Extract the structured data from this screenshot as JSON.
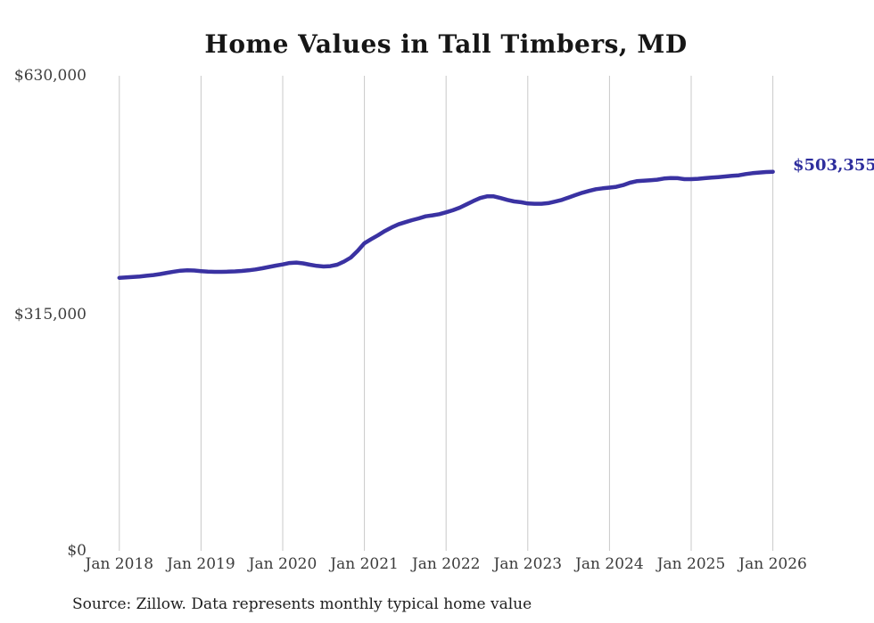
{
  "title": "Home Values in Tall Timbers, MD",
  "source_note": "Source: Zillow. Data represents monthly typical home value",
  "colors": {
    "line": "#3a32a2",
    "end_label": "#2e2e9d",
    "gridline": "#c9c9c9",
    "axis_text": "#3b3b3b",
    "title_text": "#161616"
  },
  "chart_data": {
    "type": "line",
    "title": "Home Values in Tall Timbers, MD",
    "xlabel": "",
    "ylabel": "",
    "ylim": [
      0,
      630000
    ],
    "grid": "vertical-only",
    "legend": "none",
    "y_tick_labels": [
      "$630,000",
      "$315,000",
      "$0"
    ],
    "x_tick_labels": [
      "Jan 2018",
      "Jan 2019",
      "Jan 2020",
      "Jan 2021",
      "Jan 2022",
      "Jan 2023",
      "Jan 2024",
      "Jan 2025",
      "Jan 2026"
    ],
    "last_value": 503355,
    "last_value_label": "$503,355",
    "x": [
      "2018-01",
      "2018-02",
      "2018-03",
      "2018-04",
      "2018-05",
      "2018-06",
      "2018-07",
      "2018-08",
      "2018-09",
      "2018-10",
      "2018-11",
      "2018-12",
      "2019-01",
      "2019-02",
      "2019-03",
      "2019-04",
      "2019-05",
      "2019-06",
      "2019-07",
      "2019-08",
      "2019-09",
      "2019-10",
      "2019-11",
      "2019-12",
      "2020-01",
      "2020-02",
      "2020-03",
      "2020-04",
      "2020-05",
      "2020-06",
      "2020-07",
      "2020-08",
      "2020-09",
      "2020-10",
      "2020-11",
      "2020-12",
      "2021-01",
      "2021-02",
      "2021-03",
      "2021-04",
      "2021-05",
      "2021-06",
      "2021-07",
      "2021-08",
      "2021-09",
      "2021-10",
      "2021-11",
      "2021-12",
      "2022-01",
      "2022-02",
      "2022-03",
      "2022-04",
      "2022-05",
      "2022-06",
      "2022-07",
      "2022-08",
      "2022-09",
      "2022-10",
      "2022-11",
      "2022-12",
      "2023-01",
      "2023-02",
      "2023-03",
      "2023-04",
      "2023-05",
      "2023-06",
      "2023-07",
      "2023-08",
      "2023-09",
      "2023-10",
      "2023-11",
      "2023-12",
      "2024-01",
      "2024-02",
      "2024-03",
      "2024-04",
      "2024-05",
      "2024-06",
      "2024-07",
      "2024-08",
      "2024-09",
      "2024-10",
      "2024-11",
      "2024-12",
      "2025-01",
      "2025-02",
      "2025-03",
      "2025-04",
      "2025-05",
      "2025-06",
      "2025-07",
      "2025-08",
      "2025-09",
      "2025-10",
      "2025-11",
      "2025-12",
      "2026-01"
    ],
    "values": [
      363500,
      364000,
      364600,
      365300,
      366200,
      367200,
      368500,
      370100,
      371700,
      373000,
      373400,
      373200,
      372300,
      371700,
      371400,
      371400,
      371700,
      372000,
      372600,
      373400,
      374600,
      376100,
      377900,
      379600,
      381200,
      383000,
      383600,
      382600,
      380800,
      379300,
      378500,
      378900,
      380800,
      384900,
      390200,
      399000,
      409100,
      414600,
      419700,
      425200,
      429900,
      434100,
      436900,
      439600,
      441900,
      444700,
      445900,
      447500,
      449900,
      452600,
      456100,
      460400,
      464700,
      468700,
      471000,
      471000,
      468700,
      466300,
      464300,
      463200,
      461600,
      461200,
      461200,
      462000,
      464000,
      466300,
      469400,
      472600,
      475700,
      478100,
      480400,
      481600,
      482500,
      483500,
      485800,
      489000,
      491000,
      491700,
      492200,
      492900,
      494500,
      495200,
      494900,
      493700,
      493700,
      494100,
      494900,
      495700,
      496400,
      497200,
      498000,
      498700,
      500400,
      501500,
      502300,
      503100,
      503355
    ]
  }
}
